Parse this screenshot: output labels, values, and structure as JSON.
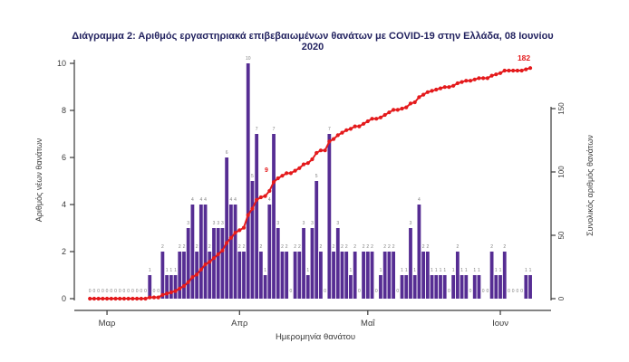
{
  "page": {
    "background": "#ffffff"
  },
  "chart_data": {
    "type": "bar",
    "title": "Διάγραμμα 2: Αριθμός εργαστηριακά επιβεβαιωμένων θανάτων με COVID-19 στην Ελλάδα, 08 Ιουνίου 2020",
    "x": {
      "label": "Ημερομηνία θανάτου",
      "tick_labels": [
        "Μαρ",
        "Απρ",
        "Μαΐ",
        "Ιουν"
      ],
      "start_date": "2020-02-26",
      "end_date": "2020-06-08"
    },
    "y_left": {
      "label": "Αριθμός νέων θανάτων",
      "ticks": [
        0,
        2,
        4,
        6,
        8,
        10
      ],
      "range": [
        0,
        10
      ]
    },
    "y_right": {
      "label": "Συνολικός αριθμός θανάτων",
      "ticks": [
        0,
        50,
        100,
        150
      ],
      "range": [
        0,
        150
      ]
    },
    "grid": false,
    "legend": "none",
    "bar_value_labels": true,
    "series": [
      {
        "name": "daily_deaths",
        "type": "bar",
        "color": "#562d93",
        "values": [
          0,
          0,
          0,
          0,
          0,
          0,
          0,
          0,
          0,
          0,
          0,
          0,
          0,
          0,
          1,
          0,
          0,
          2,
          1,
          1,
          1,
          2,
          2,
          3,
          4,
          2,
          4,
          4,
          2,
          3,
          3,
          3,
          6,
          4,
          4,
          2,
          2,
          10,
          5,
          7,
          2,
          1,
          4,
          7,
          3,
          2,
          2,
          0,
          2,
          2,
          3,
          1,
          3,
          5,
          2,
          0,
          7,
          2,
          3,
          2,
          2,
          1,
          2,
          0,
          2,
          2,
          2,
          0,
          1,
          2,
          2,
          2,
          0,
          1,
          1,
          3,
          1,
          4,
          2,
          2,
          1,
          1,
          1,
          1,
          0,
          1,
          2,
          1,
          1,
          0,
          1,
          1,
          0,
          0,
          2,
          1,
          1,
          2,
          0,
          0,
          0,
          0,
          1,
          1
        ]
      },
      {
        "name": "cumulative_deaths",
        "type": "line",
        "color": "#e41a1c",
        "derived": "cumulative_of_daily",
        "final_value": 182
      }
    ],
    "annotations": [
      {
        "text": "182",
        "color": "#e41a1c"
      },
      {
        "text": "9",
        "color": "#e41a1c"
      }
    ],
    "label_color": "#808080",
    "axis_color": "#3a3a3a"
  }
}
